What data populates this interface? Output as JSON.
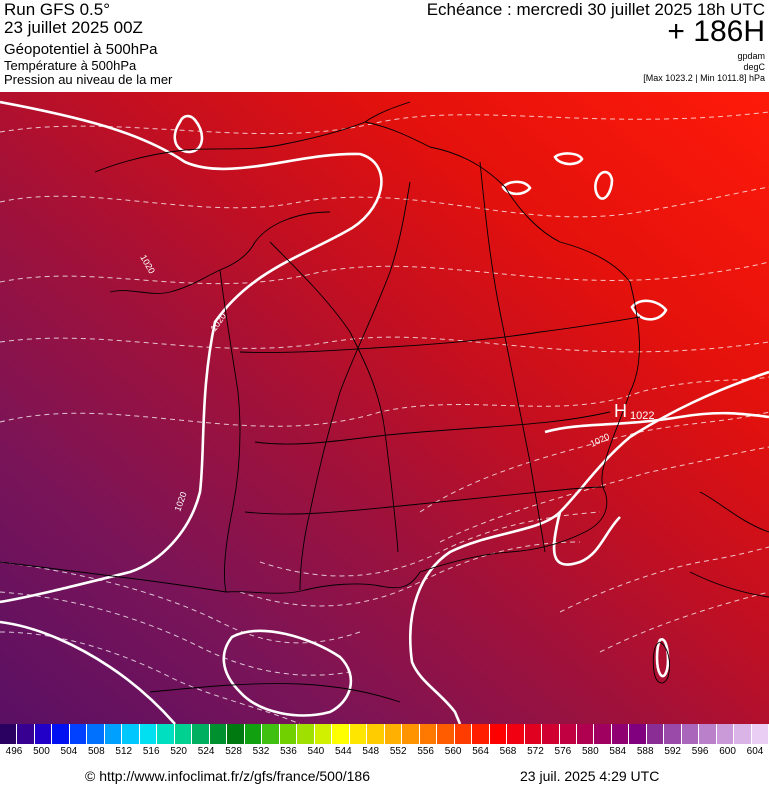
{
  "header": {
    "run_title": "Run GFS 0.5°",
    "run_date": "23 juillet 2025 00Z",
    "param_1": "Géopotentiel à 500hPa",
    "param_2": "Température à 500hPa",
    "param_3": "Pression au niveau de la mer",
    "echeance": "Echéance : mercredi 30 juillet 2025 18h UTC",
    "lead": "+ 186H",
    "unit_1": "gpdam",
    "unit_2": "degC",
    "maxmin": "[Max 1023.2 | Min 1011.8] hPa"
  },
  "map": {
    "high_label": "H",
    "high_value": "1022",
    "isobar_labels": [
      "1020",
      "1020",
      "1020",
      "1020"
    ],
    "colors": {
      "deep_purple": "#5a1064",
      "purple": "#7a1458",
      "crimson": "#a0113a",
      "dark_red": "#c40f20",
      "red": "#e4110c",
      "bright_red": "#ff1a0a",
      "isobar": "#ffffff",
      "coast": "#000000"
    }
  },
  "colorbar": {
    "ticks": [
      "496",
      "500",
      "504",
      "508",
      "512",
      "516",
      "520",
      "524",
      "528",
      "532",
      "536",
      "540",
      "544",
      "548",
      "552",
      "556",
      "560",
      "564",
      "568",
      "572",
      "576",
      "580",
      "584",
      "588",
      "592",
      "596",
      "600",
      "604"
    ],
    "colors": [
      "#2a0060",
      "#380090",
      "#2200c8",
      "#0010f0",
      "#0040ff",
      "#0070ff",
      "#00a0ff",
      "#00c8ff",
      "#00e0f0",
      "#00e0c0",
      "#00d090",
      "#00b060",
      "#009030",
      "#007a10",
      "#10a010",
      "#40c010",
      "#70d000",
      "#a0e000",
      "#d0f000",
      "#ffff00",
      "#ffe600",
      "#ffcc00",
      "#ffb000",
      "#ff9400",
      "#ff7800",
      "#ff5c00",
      "#ff3c00",
      "#ff1e00",
      "#ff0000",
      "#f00010",
      "#e00020",
      "#d00030",
      "#c00040",
      "#b00050",
      "#a00060",
      "#900070",
      "#800080",
      "#8a2e96",
      "#9a4aa8",
      "#aa66ba",
      "#ba80ca",
      "#ca9ad8",
      "#dab4e6",
      "#eacef4"
    ]
  },
  "footer": {
    "url": "© http://www.infoclimat.fr/z/gfs/france/500/186",
    "timestamp": "23 juil. 2025  4:29 UTC"
  }
}
